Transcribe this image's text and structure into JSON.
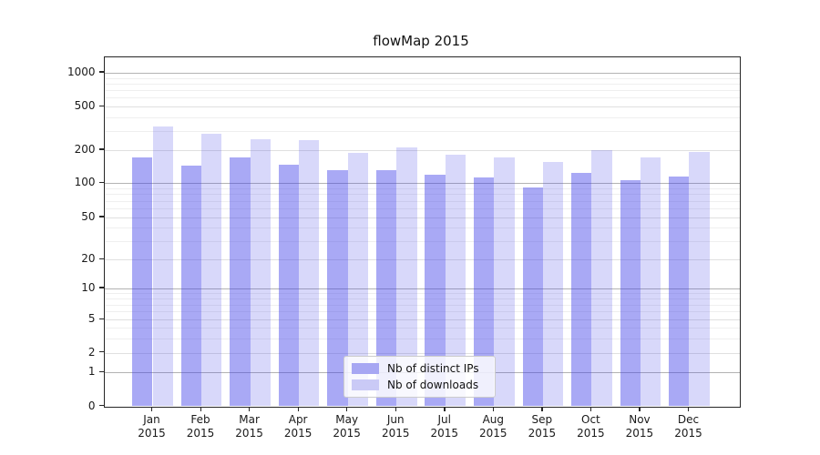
{
  "chart_data": {
    "type": "bar",
    "title": "flowMap 2015",
    "categories": [
      "Jan",
      "Feb",
      "Mar",
      "Apr",
      "May",
      "Jun",
      "Jul",
      "Aug",
      "Sep",
      "Oct",
      "Nov",
      "Dec"
    ],
    "x_tick_second_line": "2015",
    "series": [
      {
        "name": "Nb of distinct IPs",
        "values": [
          170,
          145,
          170,
          146,
          132,
          132,
          119,
          113,
          91,
          123,
          107,
          115
        ],
        "bar_color": "rgba(60,60,232,0.44)",
        "swatch_color": "#a7a7f3"
      },
      {
        "name": "Nb of downloads",
        "values": [
          330,
          280,
          250,
          248,
          190,
          210,
          180,
          170,
          156,
          200,
          170,
          193
        ],
        "bar_color": "rgba(60,60,232,0.20)",
        "swatch_color": "#cacaf6"
      }
    ],
    "y_ticks": [
      0,
      1,
      2,
      5,
      10,
      20,
      50,
      100,
      200,
      500,
      1000
    ],
    "y_scale": "symlog",
    "ylim": [
      0,
      1380
    ],
    "grid": true,
    "legend_position": "lower-center",
    "colors": {
      "grid_major": "#b3b3b3",
      "grid_mid": "#e0e0e0",
      "grid_minor": "#efefef",
      "axis_frame": "#262626"
    }
  }
}
